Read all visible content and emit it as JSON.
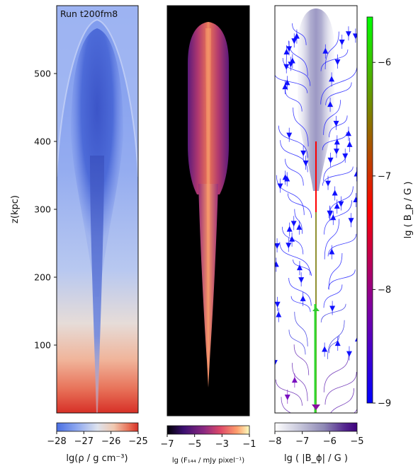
{
  "chart_data": [
    {
      "type": "heatmap",
      "panel": "density",
      "annotation": "Run t200fm8",
      "ylabel": "z(kpc)",
      "yticks": [
        100,
        200,
        300,
        400,
        500
      ],
      "ylim": [
        0,
        600
      ],
      "colorbar": {
        "label": "lg(ρ / g cm⁻³)",
        "ticks": [
          "−28",
          "−27",
          "−26",
          "−25"
        ],
        "range": [
          -28,
          -25
        ],
        "colors": [
          "#4a6fe3",
          "#8fa8f0",
          "#dde2ee",
          "#f0c8b0",
          "#e8735a",
          "#d73027"
        ]
      }
    },
    {
      "type": "heatmap",
      "panel": "synchrotron-flux",
      "colorbar": {
        "label": "lg (F₁₄₄ / mJy pixel⁻¹)",
        "ticks": [
          "−7",
          "−5",
          "−3",
          "−1"
        ],
        "range": [
          -7,
          -1
        ],
        "colors": [
          "#000004",
          "#3b0f70",
          "#8c2981",
          "#de4968",
          "#fe9f6d",
          "#fcfdbf"
        ]
      }
    },
    {
      "type": "heatmap",
      "panel": "magnetic-field",
      "overlay": "streamlines",
      "colorbar_bottom": {
        "label": "lg ( |B_ϕ| / G )",
        "ticks": [
          "−8",
          "−7",
          "−6",
          "−5"
        ],
        "range": [
          -8,
          -5
        ],
        "colors": [
          "#ffffff",
          "#c7c7db",
          "#8e88b5",
          "#54278f",
          "#3f007d"
        ]
      },
      "colorbar_right": {
        "label": "lg ( B_p / G )",
        "ticks": [
          "−6",
          "−7",
          "−8",
          "−9"
        ],
        "tick_values": [
          -6,
          -7,
          -8,
          -9
        ],
        "range": [
          -9,
          -5.6
        ],
        "colors": [
          "#0000ff",
          "#8000a0",
          "#ff0000",
          "#808000",
          "#00ff00"
        ]
      }
    }
  ]
}
